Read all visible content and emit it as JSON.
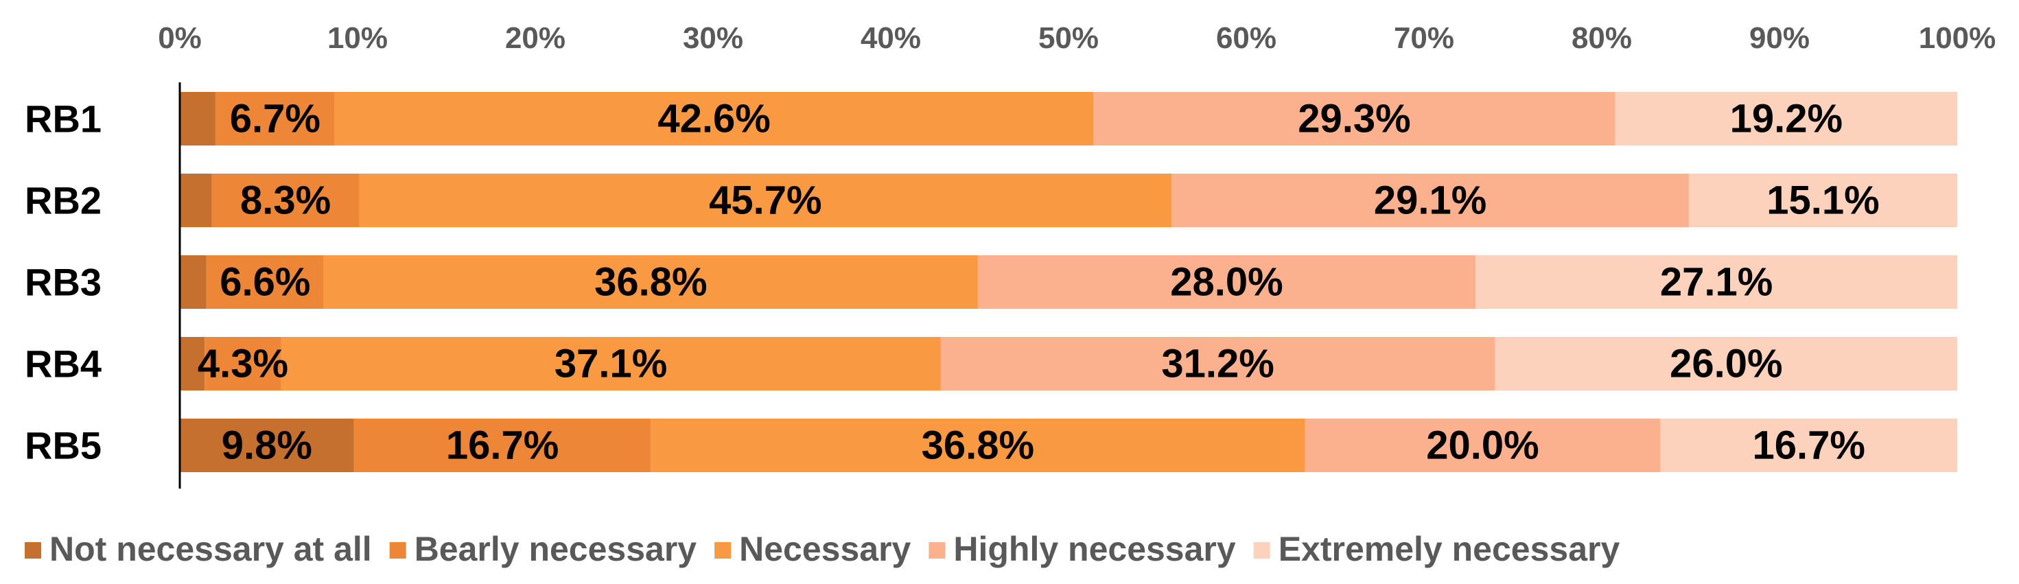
{
  "chart_data": {
    "type": "bar",
    "orientation": "horizontal",
    "stacked": "percent",
    "categories": [
      "RB1",
      "RB2",
      "RB3",
      "RB4",
      "RB5"
    ],
    "series": [
      {
        "name": "Not necessary at all",
        "color": "#C5702E",
        "values": [
          2.0,
          1.8,
          1.5,
          1.4,
          9.8
        ],
        "labels": [
          "",
          "",
          "",
          "",
          "9.8%"
        ]
      },
      {
        "name": "Bearly necessary",
        "color": "#ED8636",
        "values": [
          6.7,
          8.3,
          6.6,
          4.3,
          16.7
        ],
        "labels": [
          "6.7%",
          "8.3%",
          "6.6%",
          "4.3%",
          "16.7%"
        ]
      },
      {
        "name": "Necessary",
        "color": "#F99A42",
        "values": [
          42.6,
          45.7,
          36.8,
          37.1,
          36.8
        ],
        "labels": [
          "42.6%",
          "45.7%",
          "36.8%",
          "37.1%",
          "36.8%"
        ]
      },
      {
        "name": "Highly necessary",
        "color": "#FCB18E",
        "values": [
          29.3,
          29.1,
          28.0,
          31.2,
          20.0
        ],
        "labels": [
          "29.3%",
          "29.1%",
          "28.0%",
          "31.2%",
          "20.0%"
        ]
      },
      {
        "name": "Extremely necessary",
        "color": "#FDD2BC",
        "values": [
          19.2,
          15.1,
          27.1,
          26.0,
          16.7
        ],
        "labels": [
          "19.2%",
          "15.1%",
          "27.1%",
          "26.0%",
          "16.7%"
        ]
      }
    ],
    "xlim": [
      0,
      100
    ],
    "x_ticks": [
      "0%",
      "10%",
      "20%",
      "30%",
      "40%",
      "50%",
      "60%",
      "70%",
      "80%",
      "90%",
      "100%"
    ],
    "x_axis_position": "top",
    "grid": false,
    "legend_position": "bottom"
  }
}
